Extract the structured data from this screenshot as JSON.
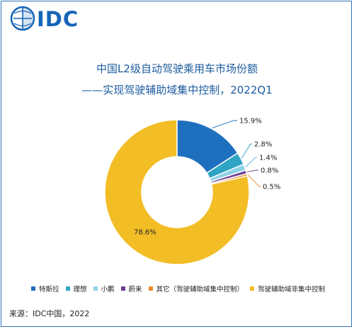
{
  "logo": {
    "text": "IDC",
    "color": "#1565b8"
  },
  "source": "来源：IDC中国，2022",
  "chart_data": {
    "type": "pie",
    "variant": "donut",
    "title": "中国L2级自动驾驶乘用车市场份额",
    "subtitle": "——实现驾驶辅助域集中控制，2022Q1",
    "series": [
      {
        "name": "特斯拉",
        "value": 15.9,
        "label": "15.9%",
        "color": "#1f6fbf"
      },
      {
        "name": "理想",
        "value": 2.8,
        "label": "2.8%",
        "color": "#2fa5c4"
      },
      {
        "name": "小鹏",
        "value": 1.4,
        "label": "1.4%",
        "color": "#8fd2e8"
      },
      {
        "name": "蔚来",
        "value": 0.8,
        "label": "0.8%",
        "color": "#6d3f98"
      },
      {
        "name": "其它（驾驶辅助域集中控制）",
        "value": 0.5,
        "label": "0.5%",
        "color": "#ef8a2e"
      },
      {
        "name": "驾驶辅助域非集中控制",
        "value": 78.6,
        "label": "78.6%",
        "color": "#f3bd26"
      }
    ],
    "legend_position": "bottom"
  }
}
